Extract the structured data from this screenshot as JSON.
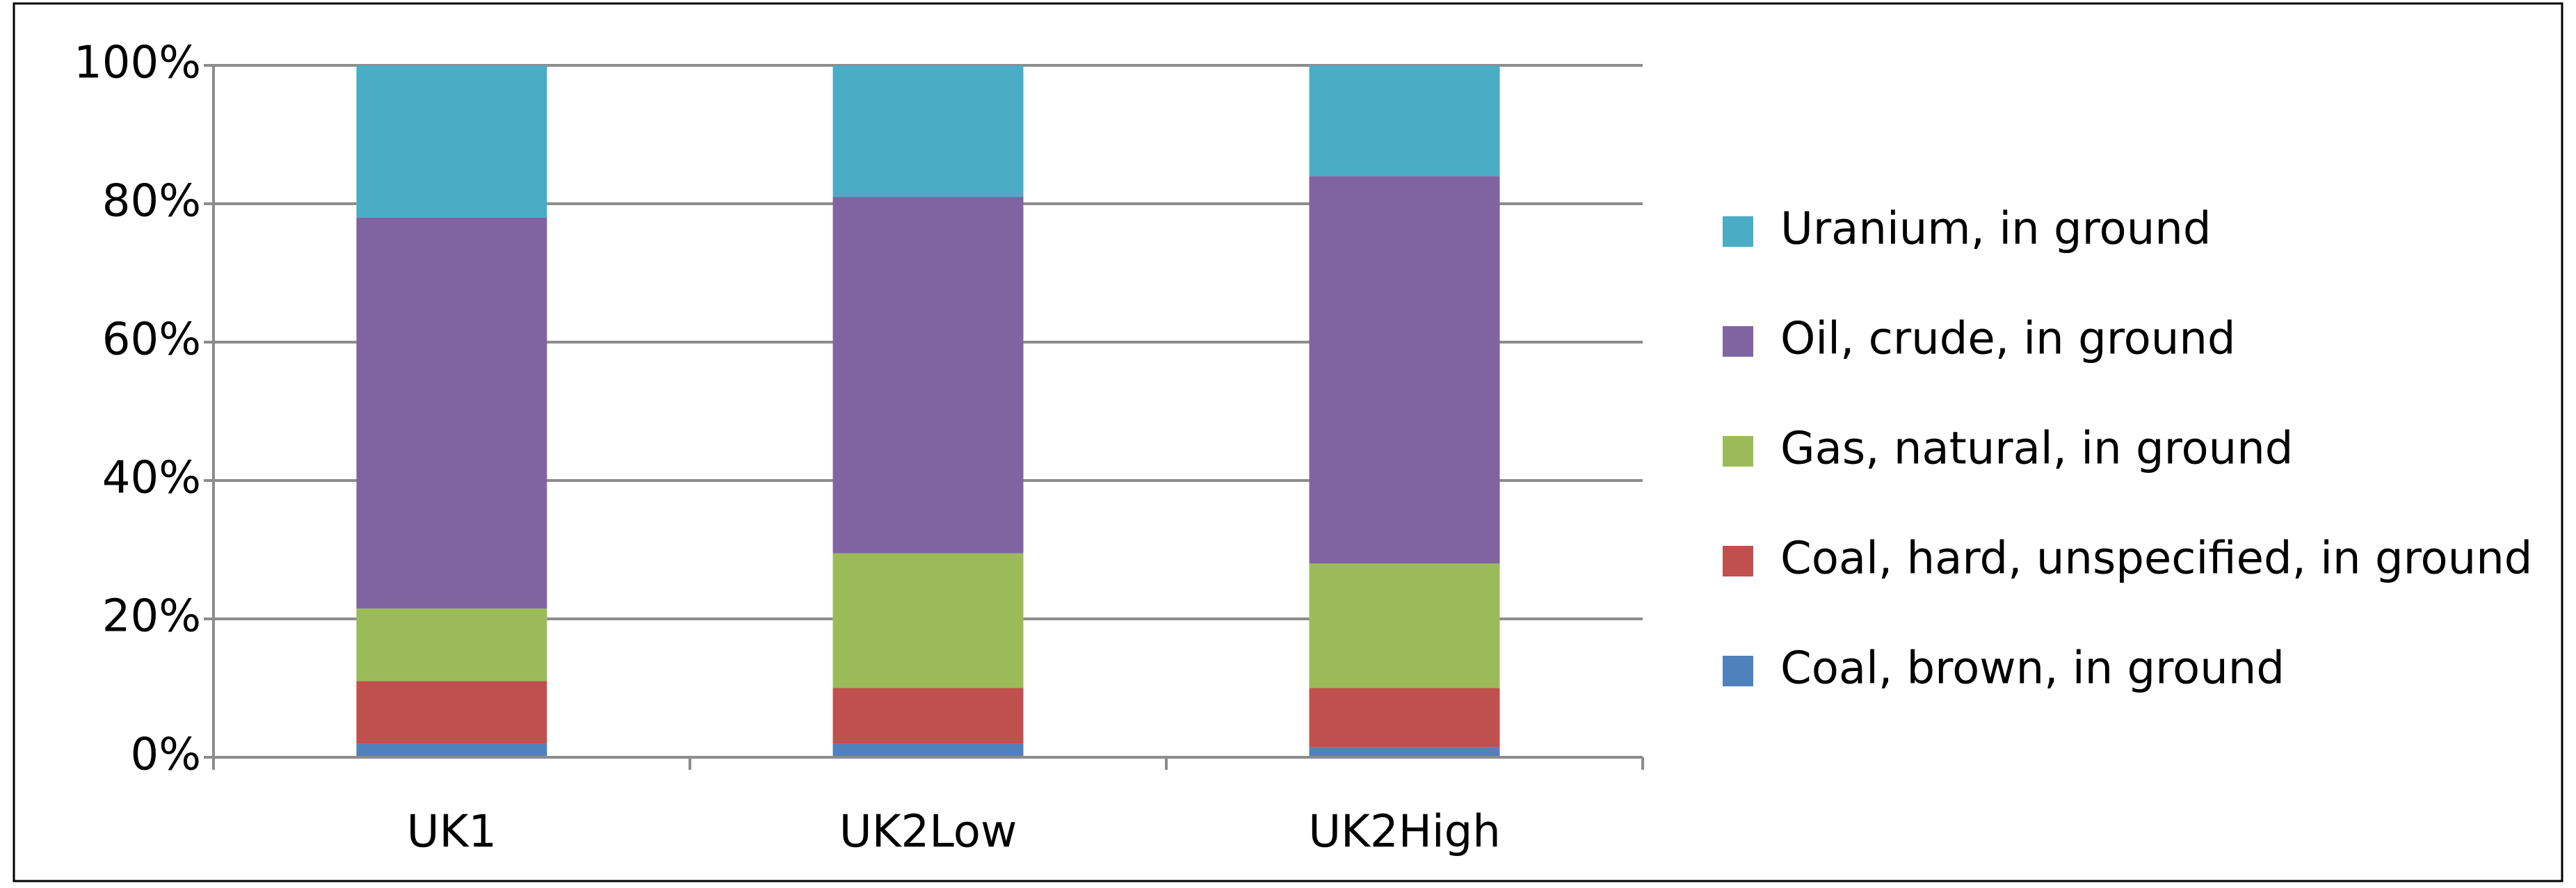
{
  "chart_data": {
    "type": "stacked_bar",
    "categories": [
      "UK1",
      "UK2Low",
      "UK2High"
    ],
    "series": [
      {
        "name": "Coal, brown, in ground",
        "color": "#4f81bd",
        "values": [
          2,
          2,
          1.5
        ]
      },
      {
        "name": "Coal, hard, unspecified, in ground",
        "color": "#c0504d",
        "values": [
          9,
          8,
          8.5
        ]
      },
      {
        "name": "Gas, natural, in ground",
        "color": "#9bbb59",
        "values": [
          10.5,
          19.5,
          18
        ]
      },
      {
        "name": "Oil, crude, in ground",
        "color": "#8064a2",
        "values": [
          56.5,
          51.5,
          56
        ]
      },
      {
        "name": "Uranium, in ground",
        "color": "#4bacc6",
        "values": [
          22,
          19,
          16
        ]
      }
    ],
    "ylim": [
      0,
      100
    ],
    "yticks": [
      {
        "value": 0,
        "label": "0%"
      },
      {
        "value": 20,
        "label": "20%"
      },
      {
        "value": 40,
        "label": "40%"
      },
      {
        "value": 60,
        "label": "60%"
      },
      {
        "value": 80,
        "label": "80%"
      },
      {
        "value": 100,
        "label": "100%"
      }
    ],
    "grid": true,
    "legend": "right"
  }
}
